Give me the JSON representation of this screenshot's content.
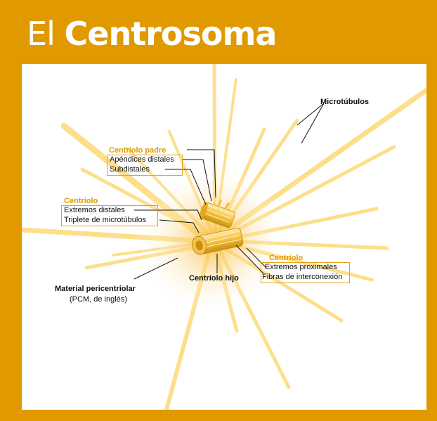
{
  "title": {
    "part1": "El",
    "part2": "Centrosoma"
  },
  "labels": {
    "microtubulos": "Microtúbulos",
    "centriolo_padre": "Centríolo padre",
    "apendices_distales": "Apéndices distales",
    "subdistales": "Subdistales",
    "centriolo_left": "Centríolo",
    "extremos_distales": "Extremos distales",
    "triplete": "Triplete de microtúbulos",
    "centriolo_right": "Centríolo",
    "extremos_proximales": "Extremos proximales",
    "fibras": "Fibras de interconexión",
    "centriolo_hijo": "Centríolo hijo",
    "material": "Material pericentriolar",
    "pcm": "(PCM, de inglés)"
  },
  "colors": {
    "background": "#e09a00",
    "panel": "#ffffff",
    "microtubule": "#fddf8a",
    "accent_text": "#e09a00",
    "centriole": "#f5c43c"
  }
}
